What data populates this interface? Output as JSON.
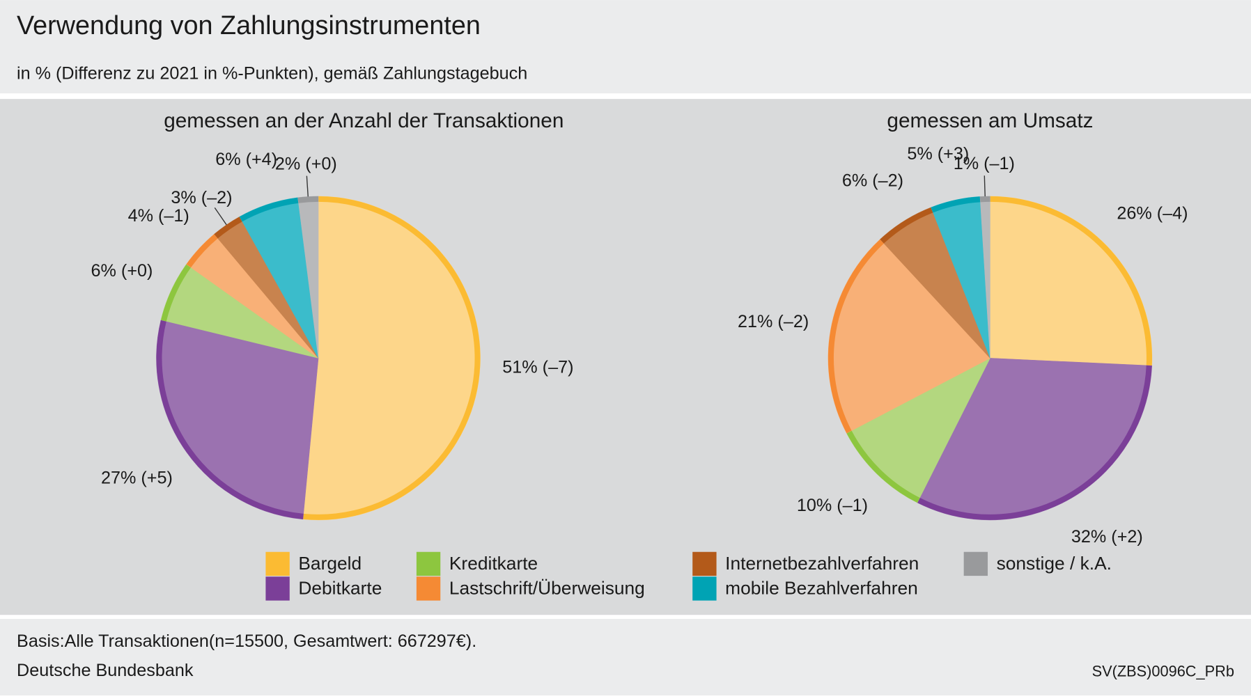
{
  "header": {
    "title": "Verwendung von Zahlungsinstrumenten",
    "subtitle": "in % (Differenz zu 2021 in %-Punkten), gemäß Zahlungstagebuch"
  },
  "chart_data": [
    {
      "type": "pie",
      "title": "gemessen an der Anzahl der Transaktionen",
      "categories": [
        "Bargeld",
        "Debitkarte",
        "Kreditkarte",
        "Lastschrift/Überweisung",
        "Internetbezahlverfahren",
        "mobile Bezahlverfahren",
        "sonstige / k.A."
      ],
      "values": [
        51,
        27,
        6,
        4,
        3,
        6,
        2
      ],
      "value_labels": [
        "51% (–7)",
        "27% (+5)",
        "6% (+0)",
        "4% (–1)",
        "3% (–2)",
        "6% (+4)",
        "2% (+0)"
      ],
      "colors": [
        "#fbbb33",
        "#7b3f98",
        "#8dc63f",
        "#f58a34",
        "#b35a1a",
        "#00a3b4",
        "#999a9c"
      ],
      "fill_colors": [
        "#fdd68a",
        "#9b72b0",
        "#b3d77f",
        "#f8b077",
        "#c8834e",
        "#3bbccb",
        "#b8b9bb"
      ]
    },
    {
      "type": "pie",
      "title": "gemessen am Umsatz",
      "categories": [
        "Bargeld",
        "Debitkarte",
        "Kreditkarte",
        "Lastschrift/Überweisung",
        "Internetbezahlverfahren",
        "mobile Bezahlverfahren",
        "sonstige / k.A."
      ],
      "values": [
        26,
        32,
        10,
        21,
        6,
        5,
        1
      ],
      "value_labels": [
        "26% (–4)",
        "32% (+2)",
        "10% (–1)",
        "21% (–2)",
        "6% (–2)",
        "5% (+3)",
        "1% (–1)"
      ],
      "colors": [
        "#fbbb33",
        "#7b3f98",
        "#8dc63f",
        "#f58a34",
        "#b35a1a",
        "#00a3b4",
        "#999a9c"
      ],
      "fill_colors": [
        "#fdd68a",
        "#9b72b0",
        "#b3d77f",
        "#f8b077",
        "#c8834e",
        "#3bbccb",
        "#b8b9bb"
      ]
    }
  ],
  "footer": {
    "basis": "Basis:Alle Transaktionen(n=15500,   Gesamtwert: 667297€).",
    "source": "Deutsche Bundesbank",
    "code": "SV(ZBS)0096C_PRb"
  }
}
